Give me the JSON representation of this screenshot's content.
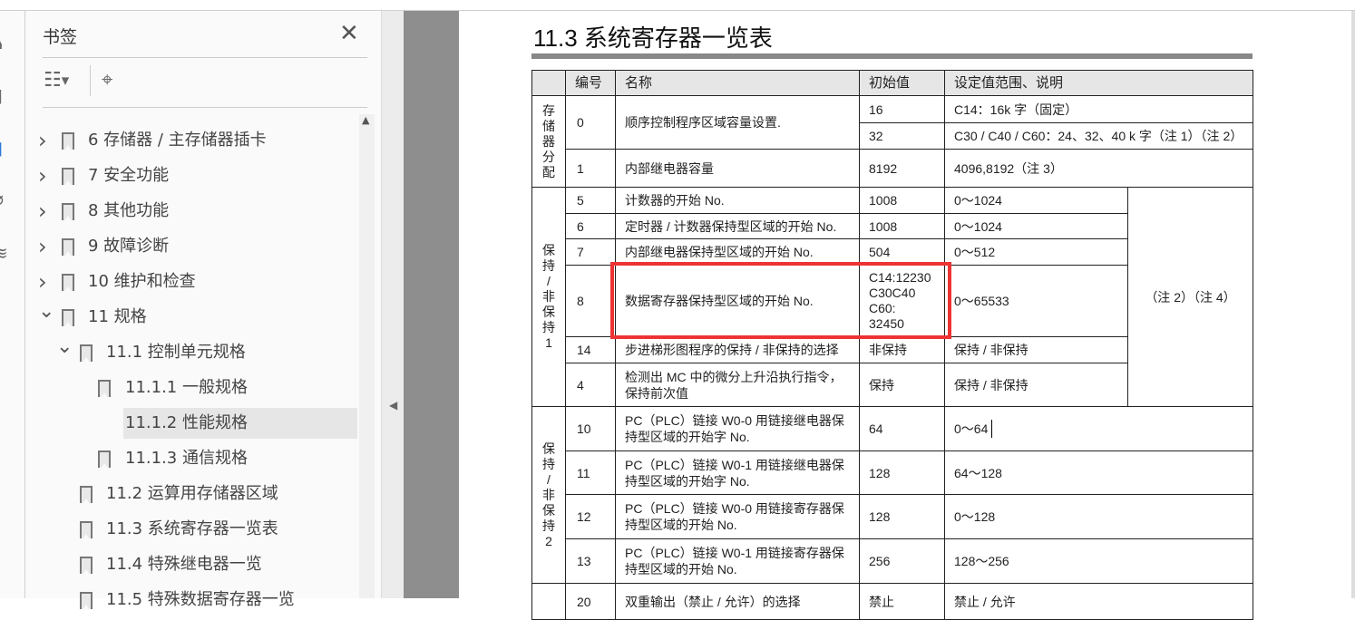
{
  "panel": {
    "title": "书签",
    "close": "✕"
  },
  "bookmarks": [
    {
      "label": "6 存储器 / 主存储器插卡",
      "level": 1,
      "expand": "collapsed"
    },
    {
      "label": "7 安全功能",
      "level": 1,
      "expand": "collapsed"
    },
    {
      "label": "8 其他功能",
      "level": 1,
      "expand": "collapsed"
    },
    {
      "label": "9 故障诊断",
      "level": 1,
      "expand": "collapsed"
    },
    {
      "label": "10 维护和检查",
      "level": 1,
      "expand": "collapsed"
    },
    {
      "label": "11 规格",
      "level": 1,
      "expand": "expanded"
    },
    {
      "label": "11.1 控制单元规格",
      "level": 2,
      "expand": "expanded"
    },
    {
      "label": "11.1.1  一般规格",
      "level": 3
    },
    {
      "label": "11.1.2  性能规格",
      "level": 3,
      "selected": true
    },
    {
      "label": "11.1.3  通信规格",
      "level": 3
    },
    {
      "label": "11.2 运算用存储器区域",
      "level": 2
    },
    {
      "label": "11.3 系统寄存器一览表",
      "level": 2
    },
    {
      "label": "11.4 特殊继电器一览",
      "level": 2
    },
    {
      "label": "11.5 特殊数据寄存器一览",
      "level": 2
    }
  ],
  "doc": {
    "title": "11.3  系统寄存器一览表",
    "headers": [
      "",
      "编号",
      "名称",
      "初始值",
      "设定值范围、说明"
    ],
    "groups": {
      "g0": "存\n储\n器\n分\n配",
      "g1": "保\n持\n/\n非\n保\n持\n1",
      "g2": "保\n持\n/\n非\n保\n持\n2"
    },
    "rows": {
      "r0": {
        "no": "0",
        "name": "顺序控制程序区域容量设置.",
        "init_a": "16",
        "range_a": "C14：16k 字（固定）",
        "init_b": "32",
        "range_b": "C30 / C40 / C60：24、32、40 k 字（注 1）（注 2）"
      },
      "r1": {
        "no": "1",
        "name": "内部继电器容量",
        "init": "8192",
        "range": "4096,8192（注 3）"
      },
      "r5": {
        "no": "5",
        "name": "计数器的开始 No.",
        "init": "1008",
        "range": "0～1024"
      },
      "r6": {
        "no": "6",
        "name": "定时器 / 计数器保持型区域的开始 No.",
        "init": "1008",
        "range": "0～1024"
      },
      "r7": {
        "no": "7",
        "name": "内部继电器保持型区域的开始 No.",
        "init": "504",
        "range": "0～512"
      },
      "r8": {
        "no": "8",
        "name": "数据寄存器保持型区域的开始 No.",
        "init": "C14:12230\nC30C40\nC60:\n32450",
        "range": "0～65533"
      },
      "r14": {
        "no": "14",
        "name": "步进梯形图程序的保持 / 非保持的选择",
        "init": "非保持",
        "range": "保持 / 非保持"
      },
      "r4": {
        "no": "4",
        "name": "检测出 MC 中的微分上升沿执行指令，保持前次值",
        "init": "保持",
        "range": "保持 / 非保持"
      },
      "r10": {
        "no": "10",
        "name": "PC（PLC）链接 W0-0 用链接继电器保持型区域的开始字 No.",
        "init": "64",
        "range": "0～64"
      },
      "r11": {
        "no": "11",
        "name": "PC（PLC）链接 W0-1 用链接继电器保持型区域的开始字 No.",
        "init": "128",
        "range": "64～128"
      },
      "r12": {
        "no": "12",
        "name": "PC（PLC）链接 W0-0 用链接寄存器保持型区域的开始 No.",
        "init": "128",
        "range": "0～128"
      },
      "r13": {
        "no": "13",
        "name": "PC（PLC）链接 W0-1 用链接寄存器保持型区域的开始 No.",
        "init": "256",
        "range": "128～256"
      },
      "r20": {
        "no": "20",
        "name": "双重输出（禁止 / 允许）的选择",
        "init": "禁止",
        "range": "禁止 / 允许"
      }
    },
    "note_g1": "（注 2）（注 4）",
    "highlight_color": "#ee3333"
  }
}
